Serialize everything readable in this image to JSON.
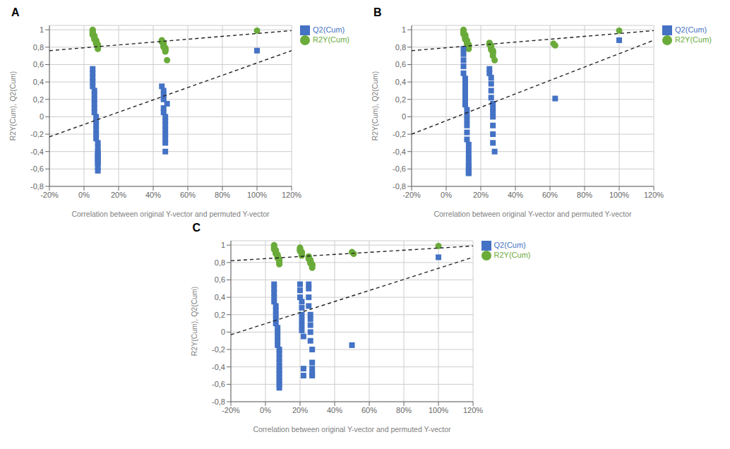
{
  "chart_data": [
    {
      "type": "scatter",
      "title": "A",
      "x_label": "Correlation between original Y-vector and permuted Y-vector",
      "y_label": "R2Y(Cum), Q2(Cum)",
      "xlim": [
        -0.2,
        1.2
      ],
      "ylim": [
        -0.8,
        1.05
      ],
      "xticks": [
        {
          "value": -0.2,
          "label": "-20%"
        },
        {
          "value": 0.0,
          "label": "0%"
        },
        {
          "value": 0.2,
          "label": "20%"
        },
        {
          "value": 0.4,
          "label": "40%"
        },
        {
          "value": 0.6,
          "label": "60%"
        },
        {
          "value": 0.8,
          "label": "80%"
        },
        {
          "value": 1.0,
          "label": "100%"
        },
        {
          "value": 1.2,
          "label": "120%"
        }
      ],
      "yticks": [
        {
          "value": -0.8,
          "label": "-0,8"
        },
        {
          "value": -0.6,
          "label": "-0,6"
        },
        {
          "value": -0.4,
          "label": "-0,4"
        },
        {
          "value": -0.2,
          "label": "-0,2"
        },
        0,
        {
          "value": 0.2,
          "label": "0,2"
        },
        {
          "value": 0.4,
          "label": "0,4"
        },
        {
          "value": 0.6,
          "label": "0,6"
        },
        {
          "value": 0.8,
          "label": "0,8"
        },
        1
      ],
      "grid": true,
      "legend": "right",
      "series": [
        {
          "name": "R2Y(Cum)",
          "type": "scatter",
          "marker": "circle",
          "color": "#6AAB3A",
          "x": [
            0.05,
            0.05,
            0.05,
            0.05,
            0.05,
            0.05,
            0.06,
            0.06,
            0.06,
            0.06,
            0.06,
            0.07,
            0.07,
            0.07,
            0.07,
            0.07,
            0.08,
            0.08,
            0.08,
            0.08,
            0.45,
            0.45,
            0.45,
            0.46,
            0.46,
            0.46,
            0.46,
            0.46,
            0.46,
            0.47,
            0.47,
            0.47,
            0.47,
            0.47,
            0.48,
            1.0
          ],
          "values": [
            1.0,
            0.99,
            0.97,
            0.96,
            0.95,
            0.94,
            0.93,
            0.92,
            0.91,
            0.9,
            0.89,
            0.88,
            0.87,
            0.86,
            0.85,
            0.84,
            0.83,
            0.82,
            0.81,
            0.78,
            0.88,
            0.87,
            0.86,
            0.85,
            0.84,
            0.83,
            0.82,
            0.81,
            0.8,
            0.79,
            0.78,
            0.77,
            0.76,
            0.75,
            0.65,
            0.99
          ]
        },
        {
          "name": "Q2(Cum)",
          "type": "scatter",
          "marker": "square",
          "color": "#4472C4",
          "x": [
            0.05,
            0.05,
            0.05,
            0.05,
            0.05,
            0.06,
            0.06,
            0.06,
            0.06,
            0.06,
            0.06,
            0.07,
            0.07,
            0.07,
            0.07,
            0.07,
            0.07,
            0.08,
            0.08,
            0.08,
            0.08,
            0.08,
            0.08,
            0.08,
            0.08,
            0.08,
            0.08,
            0.08,
            0.08,
            0.45,
            0.46,
            0.46,
            0.46,
            0.46,
            0.46,
            0.47,
            0.47,
            0.47,
            0.47,
            0.47,
            0.47,
            0.47,
            0.47,
            0.48,
            1.0
          ],
          "values": [
            0.55,
            0.5,
            0.45,
            0.4,
            0.35,
            0.3,
            0.25,
            0.2,
            0.15,
            0.1,
            0.05,
            0.0,
            -0.05,
            -0.1,
            -0.15,
            -0.2,
            -0.25,
            -0.3,
            -0.35,
            -0.4,
            -0.42,
            -0.44,
            -0.46,
            -0.48,
            -0.5,
            -0.52,
            -0.54,
            -0.58,
            -0.62,
            0.35,
            0.3,
            0.25,
            0.2,
            0.1,
            0.05,
            0.0,
            -0.05,
            -0.1,
            -0.15,
            -0.2,
            -0.25,
            -0.3,
            -0.4,
            0.15,
            0.76
          ]
        },
        {
          "type": "line",
          "line_style": "dashed",
          "color": "#222222",
          "x": [
            -0.2,
            1.2
          ],
          "values": [
            0.76,
            0.99
          ]
        },
        {
          "type": "line",
          "line_style": "dashed",
          "color": "#222222",
          "x": [
            -0.2,
            1.2
          ],
          "values": [
            -0.23,
            0.76
          ]
        }
      ]
    },
    {
      "type": "scatter",
      "title": "B",
      "x_label": "Correlation between original Y-vector and permuted Y-vector",
      "y_label": "R2Y(Cum), Q2(Cum)",
      "xlim": [
        -0.2,
        1.2
      ],
      "ylim": [
        -0.8,
        1.05
      ],
      "xticks": [
        {
          "value": -0.2,
          "label": "-20%"
        },
        {
          "value": 0.0,
          "label": "0%"
        },
        {
          "value": 0.2,
          "label": "20%"
        },
        {
          "value": 0.4,
          "label": "40%"
        },
        {
          "value": 0.6,
          "label": "60%"
        },
        {
          "value": 0.8,
          "label": "80%"
        },
        {
          "value": 1.0,
          "label": "100%"
        },
        {
          "value": 1.2,
          "label": "120%"
        }
      ],
      "yticks": [
        {
          "value": -0.8,
          "label": "-0,8"
        },
        {
          "value": -0.6,
          "label": "-0,6"
        },
        {
          "value": -0.4,
          "label": "-0,4"
        },
        {
          "value": -0.2,
          "label": "-0,2"
        },
        0,
        {
          "value": 0.2,
          "label": "0,2"
        },
        {
          "value": 0.4,
          "label": "0,4"
        },
        {
          "value": 0.6,
          "label": "0,6"
        },
        {
          "value": 0.8,
          "label": "0,8"
        },
        1
      ],
      "grid": true,
      "legend": "right",
      "series": [
        {
          "name": "R2Y(Cum)",
          "type": "scatter",
          "marker": "circle",
          "color": "#6AAB3A",
          "x": [
            0.1,
            0.1,
            0.1,
            0.1,
            0.1,
            0.11,
            0.11,
            0.11,
            0.11,
            0.11,
            0.11,
            0.12,
            0.12,
            0.12,
            0.12,
            0.12,
            0.13,
            0.13,
            0.13,
            0.13,
            0.25,
            0.25,
            0.25,
            0.26,
            0.26,
            0.26,
            0.26,
            0.26,
            0.26,
            0.27,
            0.27,
            0.27,
            0.27,
            0.27,
            0.28,
            0.62,
            0.63,
            1.0
          ],
          "values": [
            1.0,
            0.99,
            0.97,
            0.96,
            0.95,
            0.94,
            0.93,
            0.92,
            0.91,
            0.9,
            0.89,
            0.88,
            0.87,
            0.86,
            0.85,
            0.84,
            0.83,
            0.82,
            0.81,
            0.78,
            0.85,
            0.84,
            0.83,
            0.82,
            0.81,
            0.8,
            0.79,
            0.78,
            0.77,
            0.76,
            0.75,
            0.74,
            0.73,
            0.7,
            0.65,
            0.84,
            0.82,
            0.99
          ]
        },
        {
          "name": "Q2(Cum)",
          "type": "scatter",
          "marker": "square",
          "color": "#4472C4",
          "x": [
            0.1,
            0.1,
            0.1,
            0.1,
            0.1,
            0.11,
            0.11,
            0.11,
            0.11,
            0.11,
            0.11,
            0.12,
            0.12,
            0.12,
            0.12,
            0.12,
            0.12,
            0.13,
            0.13,
            0.13,
            0.13,
            0.13,
            0.13,
            0.13,
            0.13,
            0.13,
            0.13,
            0.13,
            0.25,
            0.25,
            0.26,
            0.26,
            0.26,
            0.26,
            0.27,
            0.27,
            0.27,
            0.27,
            0.27,
            0.27,
            0.27,
            0.28,
            0.63,
            1.0
          ],
          "values": [
            0.78,
            0.72,
            0.65,
            0.58,
            0.5,
            0.44,
            0.38,
            0.32,
            0.26,
            0.2,
            0.14,
            0.08,
            0.02,
            -0.04,
            -0.1,
            -0.18,
            -0.26,
            -0.32,
            -0.38,
            -0.44,
            -0.48,
            -0.52,
            -0.56,
            -0.58,
            -0.6,
            -0.62,
            -0.64,
            -0.65,
            0.55,
            0.5,
            0.45,
            0.38,
            0.3,
            0.22,
            0.15,
            0.1,
            0.05,
            0.0,
            -0.1,
            -0.2,
            -0.3,
            -0.4,
            0.21,
            0.88
          ]
        },
        {
          "type": "line",
          "line_style": "dashed",
          "color": "#222222",
          "x": [
            -0.2,
            1.2
          ],
          "values": [
            0.76,
            0.99
          ]
        },
        {
          "type": "line",
          "line_style": "dashed",
          "color": "#222222",
          "x": [
            -0.2,
            1.2
          ],
          "values": [
            -0.2,
            0.88
          ]
        }
      ]
    },
    {
      "type": "scatter",
      "title": "C",
      "x_label": "Correlation between original Y-vector and permuted Y-vector",
      "y_label": "R2Y(Cum), Q2(Cum)",
      "xlim": [
        -0.2,
        1.2
      ],
      "ylim": [
        -0.8,
        1.05
      ],
      "xticks": [
        {
          "value": -0.2,
          "label": "-20%"
        },
        {
          "value": 0.0,
          "label": "0%"
        },
        {
          "value": 0.2,
          "label": "20%"
        },
        {
          "value": 0.4,
          "label": "40%"
        },
        {
          "value": 0.6,
          "label": "60%"
        },
        {
          "value": 0.8,
          "label": "80%"
        },
        {
          "value": 1.0,
          "label": "100%"
        },
        {
          "value": 1.2,
          "label": "120%"
        }
      ],
      "yticks": [
        {
          "value": -0.8,
          "label": "-0,8"
        },
        {
          "value": -0.6,
          "label": "-0,6"
        },
        {
          "value": -0.4,
          "label": "-0,4"
        },
        {
          "value": -0.2,
          "label": "-0,2"
        },
        0,
        {
          "value": 0.2,
          "label": "0,2"
        },
        {
          "value": 0.4,
          "label": "0,4"
        },
        {
          "value": 0.6,
          "label": "0,6"
        },
        {
          "value": 0.8,
          "label": "0,8"
        },
        1
      ],
      "grid": true,
      "legend": "right",
      "series": [
        {
          "name": "R2Y(Cum)",
          "type": "scatter",
          "marker": "circle",
          "color": "#6AAB3A",
          "x": [
            0.05,
            0.05,
            0.05,
            0.05,
            0.05,
            0.06,
            0.06,
            0.06,
            0.06,
            0.06,
            0.07,
            0.07,
            0.07,
            0.07,
            0.07,
            0.08,
            0.08,
            0.08,
            0.08,
            0.08,
            0.2,
            0.2,
            0.2,
            0.2,
            0.2,
            0.21,
            0.21,
            0.21,
            0.21,
            0.21,
            0.25,
            0.25,
            0.25,
            0.25,
            0.26,
            0.26,
            0.26,
            0.26,
            0.26,
            0.27,
            0.27,
            0.27,
            0.27,
            0.5,
            0.51,
            1.0
          ],
          "values": [
            1.0,
            0.99,
            0.97,
            0.96,
            0.95,
            0.94,
            0.93,
            0.92,
            0.91,
            0.9,
            0.89,
            0.88,
            0.87,
            0.86,
            0.85,
            0.84,
            0.83,
            0.82,
            0.8,
            0.78,
            0.97,
            0.96,
            0.95,
            0.94,
            0.93,
            0.92,
            0.91,
            0.9,
            0.89,
            0.88,
            0.87,
            0.86,
            0.85,
            0.84,
            0.83,
            0.82,
            0.81,
            0.8,
            0.79,
            0.78,
            0.77,
            0.76,
            0.74,
            0.92,
            0.9,
            0.99
          ]
        },
        {
          "name": "Q2(Cum)",
          "type": "scatter",
          "marker": "square",
          "color": "#4472C4",
          "x": [
            0.05,
            0.05,
            0.05,
            0.05,
            0.05,
            0.06,
            0.06,
            0.06,
            0.06,
            0.06,
            0.07,
            0.07,
            0.07,
            0.07,
            0.07,
            0.08,
            0.08,
            0.08,
            0.08,
            0.08,
            0.08,
            0.08,
            0.08,
            0.08,
            0.08,
            0.08,
            0.2,
            0.2,
            0.2,
            0.21,
            0.21,
            0.21,
            0.21,
            0.21,
            0.21,
            0.22,
            0.22,
            0.22,
            0.25,
            0.25,
            0.25,
            0.25,
            0.26,
            0.26,
            0.26,
            0.26,
            0.26,
            0.27,
            0.27,
            0.27,
            0.27,
            0.27,
            0.5,
            1.0
          ],
          "values": [
            0.55,
            0.5,
            0.45,
            0.4,
            0.35,
            0.3,
            0.25,
            0.2,
            0.15,
            0.1,
            0.05,
            0.0,
            -0.05,
            -0.1,
            -0.15,
            -0.2,
            -0.25,
            -0.3,
            -0.35,
            -0.4,
            -0.44,
            -0.48,
            -0.52,
            -0.56,
            -0.6,
            -0.64,
            0.55,
            0.48,
            0.4,
            0.35,
            0.28,
            0.2,
            0.14,
            0.08,
            0.02,
            -0.05,
            -0.42,
            -0.5,
            0.55,
            0.5,
            0.4,
            0.3,
            0.2,
            0.15,
            0.08,
            0.0,
            -0.1,
            -0.2,
            -0.35,
            -0.42,
            -0.48,
            -0.5,
            -0.15,
            0.86
          ]
        },
        {
          "type": "line",
          "line_style": "dashed",
          "color": "#222222",
          "x": [
            -0.2,
            1.2
          ],
          "values": [
            0.82,
            0.99
          ]
        },
        {
          "type": "line",
          "line_style": "dashed",
          "color": "#222222",
          "x": [
            -0.2,
            1.2
          ],
          "values": [
            -0.03,
            0.86
          ]
        }
      ]
    }
  ]
}
